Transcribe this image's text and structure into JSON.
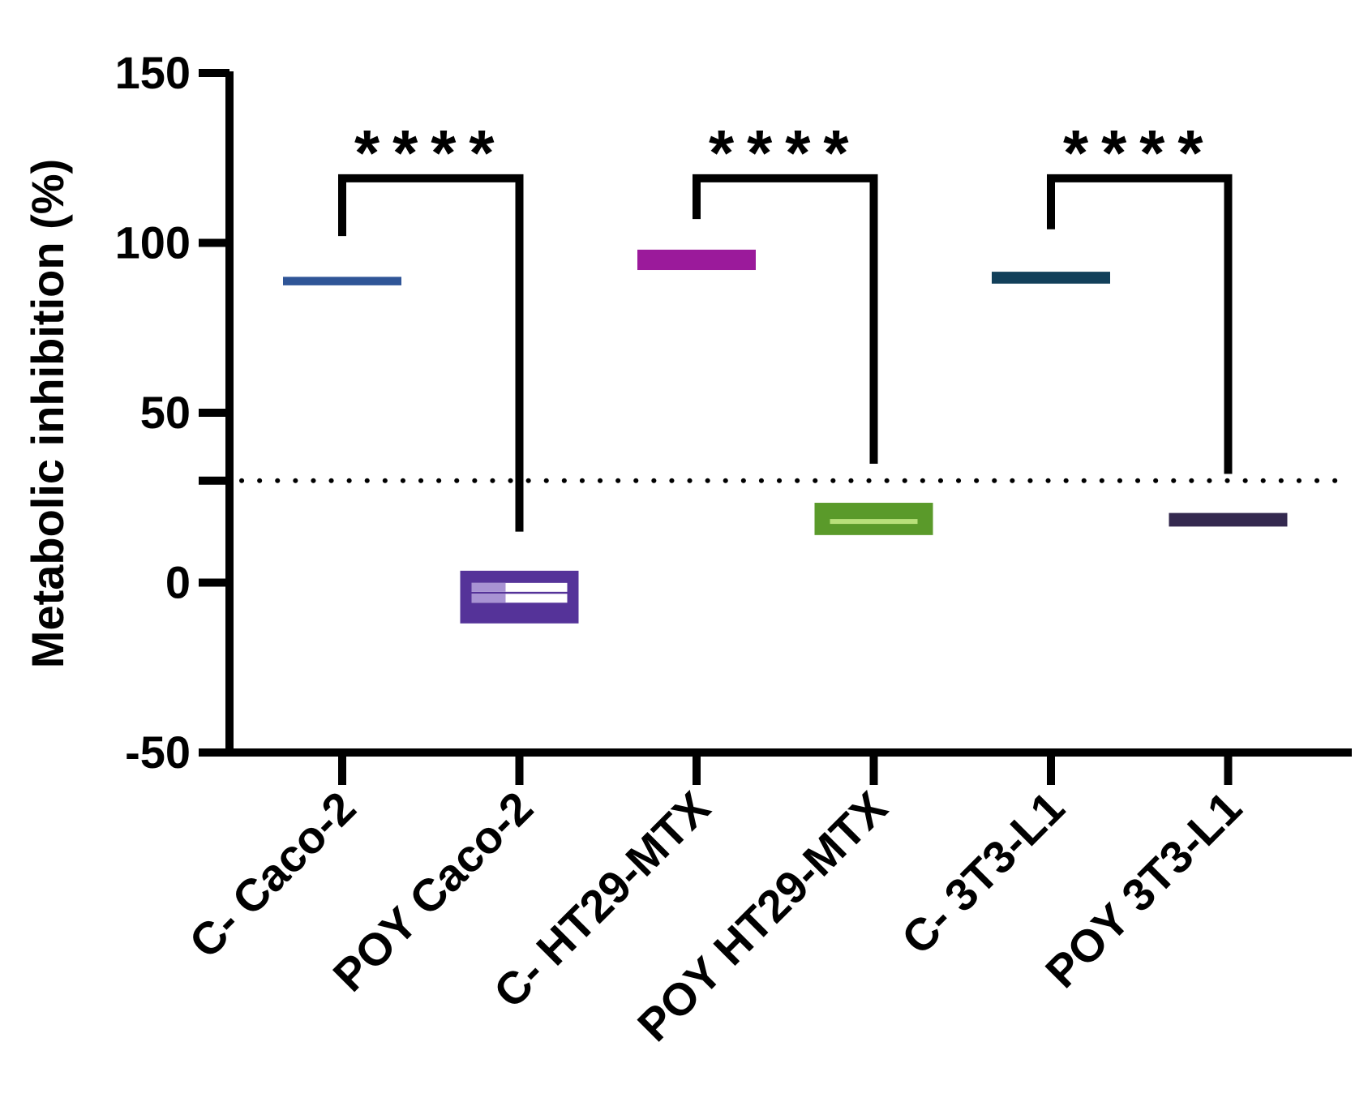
{
  "chart_data": {
    "type": "floating-bar",
    "title": "",
    "xlabel": "",
    "ylabel": "Metabolic inhibition (%)",
    "ylim": [
      -50,
      150
    ],
    "yticks": [
      -50,
      0,
      50,
      100,
      150
    ],
    "y_tick_labels": [
      "-50",
      "0",
      "50",
      "100",
      "150"
    ],
    "reference_line": {
      "value": 30,
      "style": "dotted"
    },
    "categories": [
      "C- Caco-2",
      "POY Caco-2",
      "C- HT29-MTX",
      "POY HT29-MTX",
      "C- 3T3-L1",
      "POY 3T3-L1"
    ],
    "series": [
      {
        "category": "C- Caco-2",
        "min": 87.5,
        "max": 90,
        "mid": 88.7,
        "color": "#2f5597",
        "inner_color": null
      },
      {
        "category": "POY Caco-2",
        "min": -12,
        "max": 3.5,
        "mid": -4,
        "color": "#553399",
        "inner_color": "#ffffff"
      },
      {
        "category": "C- HT29-MTX",
        "min": 92,
        "max": 98,
        "mid": 95,
        "color": "#9b1a9b",
        "inner_color": null
      },
      {
        "category": "POY HT29-MTX",
        "min": 14,
        "max": 23.5,
        "mid": 18,
        "color": "#5a9a2a",
        "inner_color": "#b8e07a"
      },
      {
        "category": "C- 3T3-L1",
        "min": 88,
        "max": 91.5,
        "mid": 90,
        "color": "#12405a",
        "inner_color": null
      },
      {
        "category": "POY 3T3-L1",
        "min": 16.5,
        "max": 20.5,
        "mid": 18.5,
        "color": "#34294f",
        "inner_color": null
      }
    ],
    "significance": [
      {
        "from": "C- Caco-2",
        "to": "POY Caco-2",
        "label": "****",
        "bracket_y": 119,
        "left_end": 102,
        "right_end": 15
      },
      {
        "from": "C- HT29-MTX",
        "to": "POY HT29-MTX",
        "label": "****",
        "bracket_y": 119,
        "left_end": 107,
        "right_end": 35
      },
      {
        "from": "C- 3T3-L1",
        "to": "POY 3T3-L1",
        "label": "****",
        "bracket_y": 119,
        "left_end": 104,
        "right_end": 32
      }
    ]
  }
}
